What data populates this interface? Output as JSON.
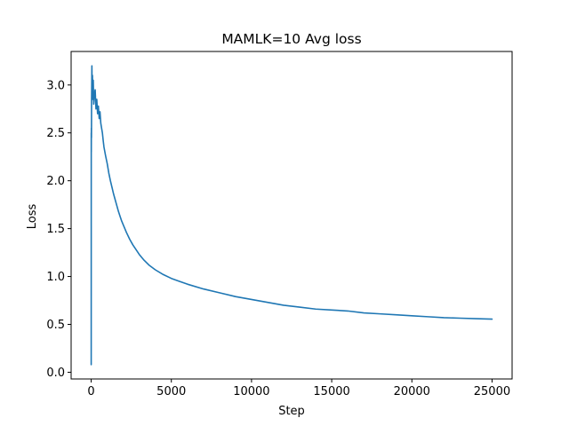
{
  "chart_data": {
    "type": "line",
    "title": "MAMLK=10 Avg loss",
    "xlabel": "Step",
    "ylabel": "Loss",
    "xlim": [
      -1250,
      26250
    ],
    "ylim": [
      -0.07,
      3.35
    ],
    "xticks": [
      0,
      5000,
      10000,
      15000,
      20000,
      25000
    ],
    "xtick_labels": [
      "0",
      "5000",
      "10000",
      "15000",
      "20000",
      "25000"
    ],
    "yticks": [
      0.0,
      0.5,
      1.0,
      1.5,
      2.0,
      2.5,
      3.0
    ],
    "ytick_labels": [
      "0.0",
      "0.5",
      "1.0",
      "1.5",
      "2.0",
      "2.5",
      "3.0"
    ],
    "grid": false,
    "series": [
      {
        "color": "#1f77b4",
        "x": [
          0,
          2,
          5,
          8,
          12,
          18,
          25,
          35,
          45,
          60,
          80,
          100,
          130,
          160,
          200,
          250,
          300,
          350,
          400,
          450,
          500,
          550,
          600,
          650,
          700,
          750,
          800,
          900,
          1000,
          1100,
          1200,
          1300,
          1400,
          1500,
          1600,
          1700,
          1800,
          1900,
          2000,
          2200,
          2400,
          2600,
          2800,
          3000,
          3300,
          3600,
          4000,
          4500,
          5000,
          5500,
          6000,
          7000,
          8000,
          9000,
          10000,
          11000,
          12000,
          13000,
          14000,
          15000,
          16000,
          17000,
          18000,
          19000,
          20000,
          21000,
          22000,
          23000,
          24000,
          25000
        ],
        "y": [
          0.09,
          0.08,
          2.5,
          2.3,
          2.55,
          2.45,
          2.85,
          3.0,
          3.2,
          2.95,
          3.1,
          2.85,
          3.05,
          2.8,
          2.9,
          2.95,
          2.75,
          2.85,
          2.7,
          2.78,
          2.65,
          2.72,
          2.6,
          2.55,
          2.5,
          2.42,
          2.35,
          2.26,
          2.18,
          2.08,
          2.0,
          1.93,
          1.86,
          1.8,
          1.74,
          1.68,
          1.63,
          1.58,
          1.54,
          1.46,
          1.39,
          1.33,
          1.28,
          1.23,
          1.17,
          1.12,
          1.07,
          1.02,
          0.98,
          0.95,
          0.92,
          0.87,
          0.83,
          0.79,
          0.76,
          0.73,
          0.7,
          0.68,
          0.66,
          0.65,
          0.64,
          0.62,
          0.61,
          0.6,
          0.59,
          0.58,
          0.57,
          0.565,
          0.56,
          0.555
        ]
      }
    ]
  }
}
